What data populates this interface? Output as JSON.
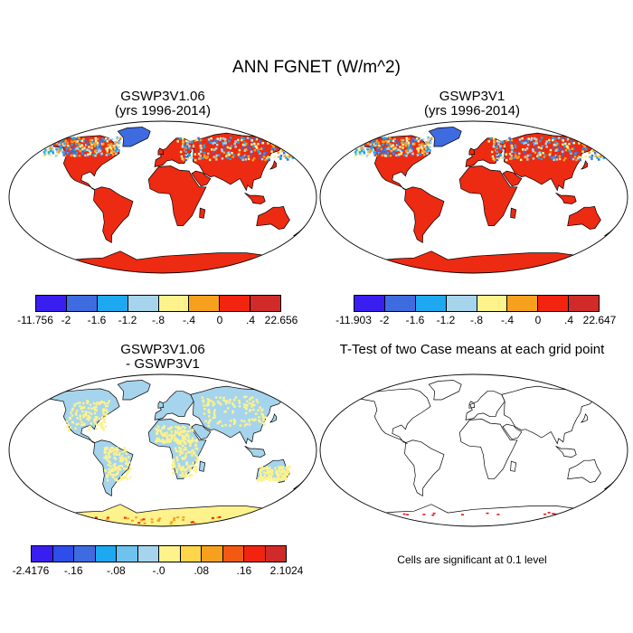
{
  "title": "ANN FGNET (W/m^2)",
  "panels": {
    "top_left": {
      "title": "GSWP3V1.06",
      "subtitle": "(yrs 1996-2014)"
    },
    "top_right": {
      "title": "GSWP3V1",
      "subtitle": "(yrs 1996-2014)"
    },
    "bottom_left": {
      "title": "GSWP3V1.06",
      "subtitle": "- GSWP3V1"
    },
    "bottom_right": {
      "title": "T-Test of two Case means at each grid point"
    }
  },
  "colorbars": {
    "top_left": {
      "colors": [
        "#3a1ef0",
        "#3f6be0",
        "#1ea8ef",
        "#a6d4ec",
        "#fdf28c",
        "#f7a01e",
        "#f2240f",
        "#d02a2a"
      ],
      "labels": [
        "-11.756",
        "-2",
        "-1.6",
        "-1.2",
        "-.8",
        "-.4",
        "0",
        ".4",
        "22.656"
      ]
    },
    "top_right": {
      "colors": [
        "#3a1ef0",
        "#3f6be0",
        "#1ea8ef",
        "#a6d4ec",
        "#fdf28c",
        "#f7a01e",
        "#f2240f",
        "#d02a2a"
      ],
      "labels": [
        "-11.903",
        "-2",
        "-1.6",
        "-1.2",
        "-.8",
        "-.4",
        "0",
        ".4",
        "22.647"
      ]
    },
    "bottom_left": {
      "colors": [
        "#3a1ef0",
        "#2f4de8",
        "#3f6be0",
        "#1ea8ef",
        "#6ec2ee",
        "#a6d4ec",
        "#fdf28c",
        "#fdd64a",
        "#f7a01e",
        "#f25a14",
        "#f2240f",
        "#d02a2a"
      ],
      "labels": [
        "-2.4176",
        "-.16",
        "-.08",
        "-.0",
        ".08",
        ".16",
        "2.1024"
      ]
    }
  },
  "note": "Cells are significant at 0.1 level"
}
